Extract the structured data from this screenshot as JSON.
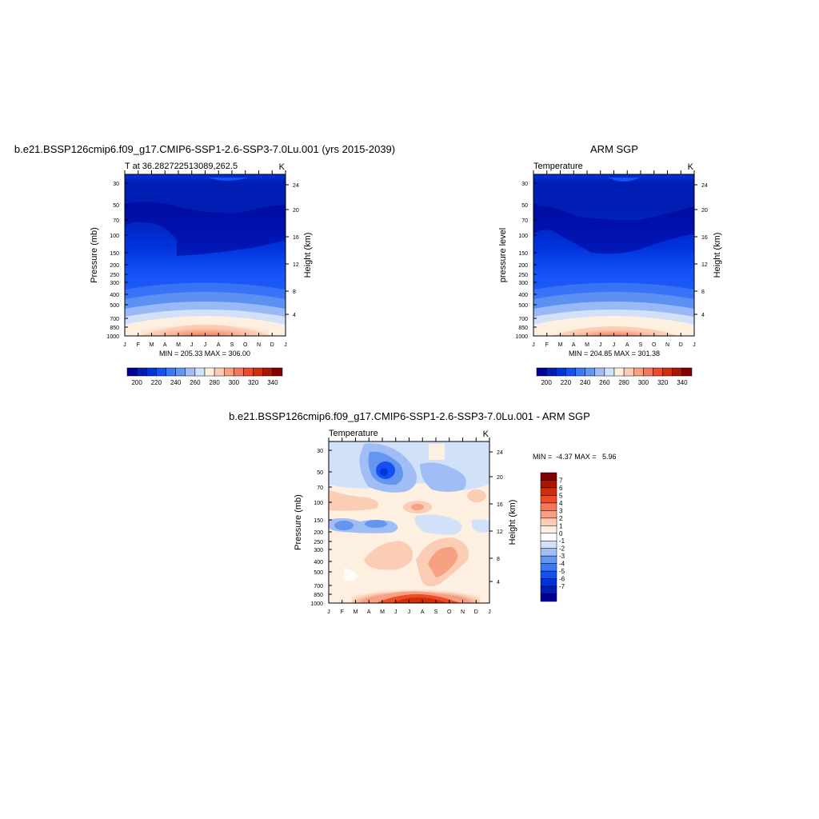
{
  "pressure_levels": [
    "30",
    "50",
    "70",
    "100",
    "150",
    "200",
    "250",
    "300",
    "400",
    "500",
    "700",
    "850",
    "1000"
  ],
  "months": [
    "J",
    "F",
    "M",
    "A",
    "M",
    "J",
    "J",
    "A",
    "S",
    "O",
    "N",
    "D",
    "J"
  ],
  "height_ticks": [
    "24",
    "20",
    "16",
    "12",
    "8",
    "4"
  ],
  "labels": {
    "pressure_mb": "Pressure (mb)",
    "pressure_level": "pressure level",
    "height_km": "Height (km)",
    "unit": "K"
  },
  "chart_data": [
    {
      "type": "heatmap",
      "panel": "model",
      "title": "b.e21.BSSP126cmip6.f09_g17.CMIP6-SSP1-2.6-SSP3-7.0Lu.001 (yrs 2015-2039)",
      "subtitle": "T at 36.282722513089,262.5",
      "unit": "K",
      "ylabel": "Pressure (mb)",
      "ylabel_right": "Height (km)",
      "minmax_text": "MIN = 205.33 MAX = 306.00",
      "min": 205.33,
      "max": 306.0,
      "colorbar": {
        "orientation": "horizontal",
        "levels": [
          195,
          200,
          205,
          210,
          215,
          220,
          225,
          230,
          235,
          240,
          245,
          250,
          255,
          260,
          265,
          270,
          275,
          280,
          285,
          290,
          295,
          300,
          305,
          310,
          315,
          320,
          325,
          330,
          335,
          340,
          345,
          350
        ],
        "tick_labels": [
          "200",
          "220",
          "240",
          "260",
          "280",
          "300",
          "320",
          "340"
        ],
        "colors": [
          "#000096",
          "#001eb4",
          "#0032dc",
          "#1450f5",
          "#3c78f5",
          "#6496f0",
          "#a0bef5",
          "#d2e1fa",
          "#fdf0e1",
          "#fbcdb4",
          "#f7a082",
          "#f5785a",
          "#f04b28",
          "#d22d0a",
          "#aa1400",
          "#820000"
        ]
      }
    },
    {
      "type": "heatmap",
      "panel": "observation",
      "title": "ARM SGP",
      "subtitle": "Temperature",
      "unit": "K",
      "ylabel": "pressure level",
      "ylabel_right": "Height (km)",
      "minmax_text": "MIN = 204.85 MAX = 301.38",
      "min": 204.85,
      "max": 301.38,
      "colorbar": {
        "orientation": "horizontal",
        "tick_labels": [
          "200",
          "220",
          "240",
          "260",
          "280",
          "300",
          "320",
          "340"
        ],
        "colors": [
          "#000096",
          "#001eb4",
          "#0032dc",
          "#1450f5",
          "#3c78f5",
          "#6496f0",
          "#a0bef5",
          "#d2e1fa",
          "#fdf0e1",
          "#fbcdb4",
          "#f7a082",
          "#f5785a",
          "#f04b28",
          "#d22d0a",
          "#aa1400",
          "#820000"
        ]
      }
    },
    {
      "type": "heatmap",
      "panel": "difference",
      "title": "b.e21.BSSP126cmip6.f09_g17.CMIP6-SSP1-2.6-SSP3-7.0Lu.001 - ARM SGP",
      "subtitle": "Temperature",
      "unit": "K",
      "ylabel": "Pressure (mb)",
      "ylabel_right": "Height (km)",
      "minmax_text": "MIN =  -4.37 MAX =   5.96",
      "min": -4.37,
      "max": 5.96,
      "colorbar": {
        "orientation": "vertical",
        "tick_labels": [
          "7",
          "6",
          "5",
          "4",
          "3",
          "2",
          "1",
          "0",
          "-1",
          "-2",
          "-3",
          "-4",
          "-5",
          "-6",
          "-7"
        ],
        "colors": [
          "#820000",
          "#aa1400",
          "#d22d0a",
          "#f04b28",
          "#f5785a",
          "#f7a082",
          "#fbcdb4",
          "#fdf0e1",
          "#ffffff",
          "#d2e1fa",
          "#a0bef5",
          "#6496f0",
          "#3c78f5",
          "#1450f5",
          "#0032dc",
          "#001eb4",
          "#000096"
        ]
      }
    }
  ]
}
